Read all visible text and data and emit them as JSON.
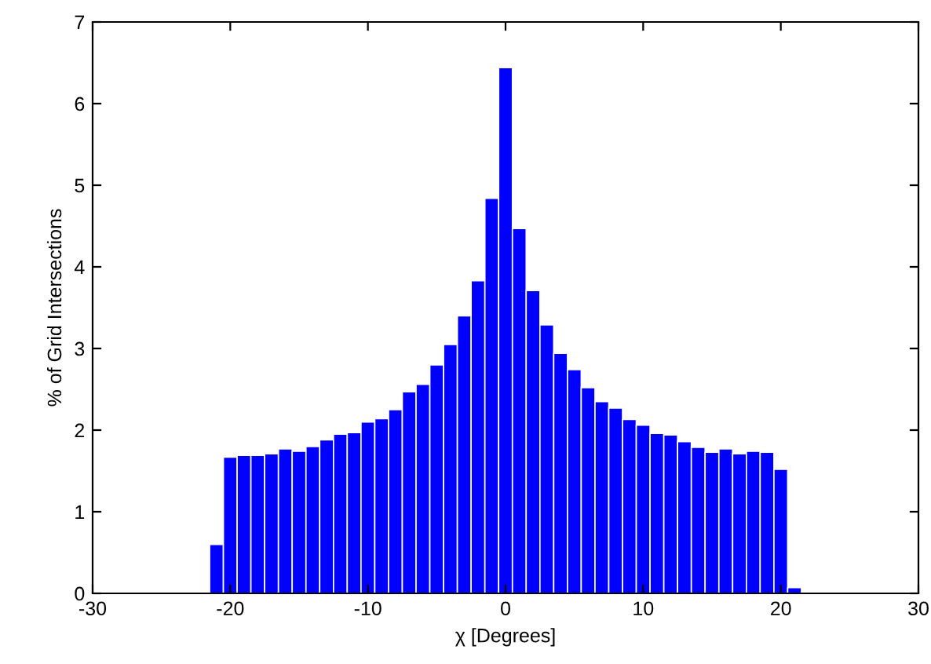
{
  "chart_data": {
    "type": "histogram",
    "xlabel": "χ [Degrees]",
    "ylabel": "% of Grid Intersections",
    "color": "#0000ff",
    "bins": [
      -21.5,
      -20.5,
      -19.5,
      -18.5,
      -17.5,
      -16.5,
      -15.5,
      -14.5,
      -13.5,
      -12.5,
      -11.5,
      -10.5,
      -9.5,
      -8.5,
      -7.5,
      -6.5,
      -5.5,
      -4.5,
      -3.5,
      -2.5,
      -1.5,
      -0.5,
      0.5,
      1.5,
      2.5,
      3.5,
      4.5,
      5.5,
      6.5,
      7.5,
      8.5,
      9.5,
      10.5,
      11.5,
      12.5,
      13.5,
      14.5,
      15.5,
      16.5,
      17.5,
      18.5,
      19.5,
      20.5,
      21.5
    ],
    "values": [
      0.6,
      1.67,
      1.69,
      1.69,
      1.71,
      1.77,
      1.74,
      1.8,
      1.88,
      1.95,
      1.97,
      2.1,
      2.14,
      2.25,
      2.47,
      2.56,
      2.8,
      3.05,
      3.4,
      3.83,
      4.84,
      6.44,
      4.47,
      3.71,
      3.29,
      2.94,
      2.74,
      2.52,
      2.35,
      2.27,
      2.13,
      2.06,
      1.96,
      1.94,
      1.86,
      1.79,
      1.73,
      1.77,
      1.71,
      1.74,
      1.73,
      1.52,
      0.07
    ],
    "xlim": [
      -30,
      30
    ],
    "xticks": [
      -30,
      -20,
      -10,
      0,
      10,
      20,
      30
    ],
    "ylim": [
      0,
      7
    ],
    "yticks": [
      0,
      1,
      2,
      3,
      4,
      5,
      6,
      7
    ],
    "grid": false
  }
}
